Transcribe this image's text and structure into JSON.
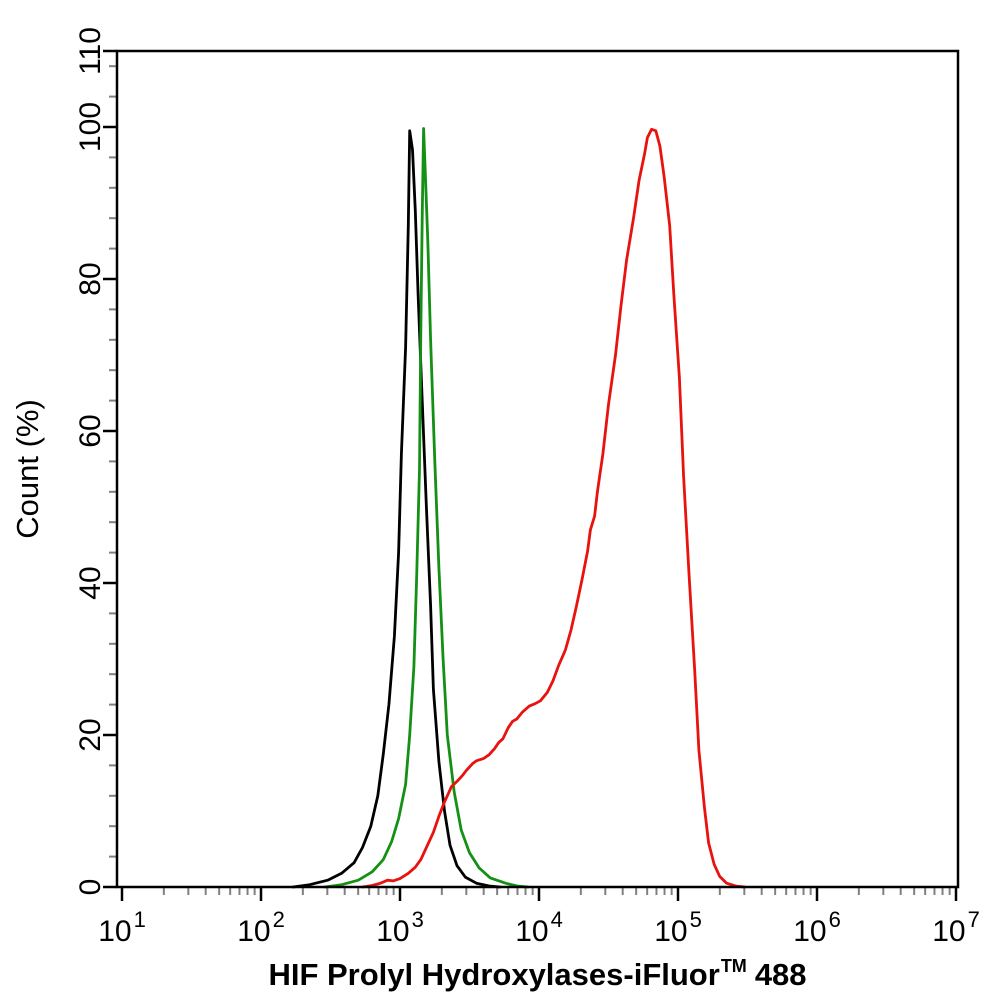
{
  "figure": {
    "background": "#ffffff",
    "x_axis": {
      "scale": "log10",
      "tick_base": "10",
      "major_tick_exponents": [
        1,
        2,
        3,
        4,
        5,
        6,
        7
      ],
      "minor_tick_multiples": [
        2,
        3,
        4,
        5,
        6,
        7,
        8,
        9
      ],
      "label_parts": {
        "main": "HIF Prolyl Hydroxylases-iFluor",
        "superscript": "TM",
        "suffix": "488"
      }
    },
    "y_axis": {
      "label": "Count  (%)",
      "min": 0,
      "max": 110,
      "major_ticks": [
        0,
        20,
        40,
        60,
        80,
        100,
        110
      ],
      "minor_tick_step": 4
    },
    "colors": {
      "axis": "#000000",
      "minor_tick": "#808080",
      "series_black": "#000000",
      "series_green": "#149114",
      "series_red": "#e8120f"
    }
  },
  "chart_data": {
    "type": "line",
    "title": "",
    "xlabel": "HIF Prolyl Hydroxylases-iFluor™ 488",
    "ylabel": "Count (%)",
    "x_scale": "log",
    "xlim": [
      10,
      10000000
    ],
    "ylim": [
      0,
      110
    ],
    "grid": false,
    "legend": "none",
    "point_format": "[log10(x), count_percent]",
    "series": [
      {
        "name": "black",
        "color": "#000000",
        "peak_x": 1200,
        "peak_y": 100,
        "points": [
          [
            2.23,
            0
          ],
          [
            2.35,
            0.3
          ],
          [
            2.48,
            0.9
          ],
          [
            2.58,
            1.8
          ],
          [
            2.67,
            3.2
          ],
          [
            2.73,
            5.2
          ],
          [
            2.79,
            8
          ],
          [
            2.84,
            12
          ],
          [
            2.88,
            17.5
          ],
          [
            2.92,
            24
          ],
          [
            2.96,
            33
          ],
          [
            2.99,
            44
          ],
          [
            3.01,
            57
          ],
          [
            3.04,
            71
          ],
          [
            3.06,
            87
          ],
          [
            3.07,
            99.5
          ],
          [
            3.09,
            97
          ],
          [
            3.11,
            89
          ],
          [
            3.13,
            78
          ],
          [
            3.16,
            64
          ],
          [
            3.19,
            50
          ],
          [
            3.22,
            37
          ],
          [
            3.24,
            26
          ],
          [
            3.28,
            16.5
          ],
          [
            3.32,
            10
          ],
          [
            3.36,
            5.5
          ],
          [
            3.41,
            2.8
          ],
          [
            3.47,
            1.3
          ],
          [
            3.55,
            0.5
          ],
          [
            3.65,
            0.1
          ],
          [
            3.72,
            0
          ]
        ]
      },
      {
        "name": "green",
        "color": "#149114",
        "peak_x": 1450,
        "peak_y": 100,
        "points": [
          [
            2.46,
            0
          ],
          [
            2.58,
            0.3
          ],
          [
            2.7,
            0.9
          ],
          [
            2.8,
            2
          ],
          [
            2.88,
            3.6
          ],
          [
            2.94,
            6
          ],
          [
            2.99,
            9
          ],
          [
            3.04,
            13.5
          ],
          [
            3.07,
            20
          ],
          [
            3.1,
            29
          ],
          [
            3.12,
            41
          ],
          [
            3.14,
            55
          ],
          [
            3.15,
            73
          ],
          [
            3.16,
            88
          ],
          [
            3.17,
            99.8
          ],
          [
            3.18,
            95
          ],
          [
            3.2,
            85
          ],
          [
            3.22,
            72
          ],
          [
            3.25,
            56
          ],
          [
            3.28,
            42
          ],
          [
            3.31,
            30
          ],
          [
            3.34,
            20
          ],
          [
            3.39,
            12.5
          ],
          [
            3.44,
            7.5
          ],
          [
            3.5,
            4.5
          ],
          [
            3.57,
            2.5
          ],
          [
            3.65,
            1.2
          ],
          [
            3.76,
            0.5
          ],
          [
            3.85,
            0.1
          ],
          [
            3.92,
            0
          ]
        ]
      },
      {
        "name": "red",
        "color": "#e8120f",
        "peak_x": 65000,
        "peak_y": 100,
        "points": [
          [
            2.73,
            0
          ],
          [
            2.8,
            0.2
          ],
          [
            2.86,
            0.5
          ],
          [
            2.91,
            0.9
          ],
          [
            2.95,
            0.8
          ],
          [
            3.0,
            1.1
          ],
          [
            3.06,
            1.8
          ],
          [
            3.11,
            2.6
          ],
          [
            3.15,
            3.6
          ],
          [
            3.19,
            5.2
          ],
          [
            3.24,
            7.2
          ],
          [
            3.28,
            9.3
          ],
          [
            3.32,
            11.2
          ],
          [
            3.35,
            12.4
          ],
          [
            3.37,
            13.2
          ],
          [
            3.41,
            13.9
          ],
          [
            3.45,
            14.7
          ],
          [
            3.48,
            15.4
          ],
          [
            3.52,
            16.2
          ],
          [
            3.55,
            16.6
          ],
          [
            3.6,
            16.9
          ],
          [
            3.64,
            17.4
          ],
          [
            3.68,
            18.2
          ],
          [
            3.71,
            19.0
          ],
          [
            3.74,
            19.5
          ],
          [
            3.78,
            21.0
          ],
          [
            3.81,
            21.8
          ],
          [
            3.84,
            22.1
          ],
          [
            3.88,
            23.0
          ],
          [
            3.93,
            23.8
          ],
          [
            3.97,
            24.1
          ],
          [
            4.01,
            24.5
          ],
          [
            4.06,
            25.6
          ],
          [
            4.1,
            27.1
          ],
          [
            4.14,
            29.1
          ],
          [
            4.19,
            31.2
          ],
          [
            4.23,
            33.8
          ],
          [
            4.27,
            37.0
          ],
          [
            4.31,
            40.5
          ],
          [
            4.35,
            44.2
          ],
          [
            4.37,
            47.0
          ],
          [
            4.4,
            48.8
          ],
          [
            4.42,
            52
          ],
          [
            4.46,
            57
          ],
          [
            4.5,
            63.5
          ],
          [
            4.55,
            70
          ],
          [
            4.59,
            76.5
          ],
          [
            4.63,
            82.5
          ],
          [
            4.68,
            88
          ],
          [
            4.72,
            93
          ],
          [
            4.76,
            96.5
          ],
          [
            4.78,
            98.6
          ],
          [
            4.81,
            99.7
          ],
          [
            4.84,
            99.5
          ],
          [
            4.87,
            97.5
          ],
          [
            4.9,
            93.5
          ],
          [
            4.94,
            87
          ],
          [
            4.97,
            78
          ],
          [
            5.01,
            67
          ],
          [
            5.04,
            54
          ],
          [
            5.08,
            41
          ],
          [
            5.12,
            28.5
          ],
          [
            5.15,
            18
          ],
          [
            5.19,
            10.5
          ],
          [
            5.22,
            5.8
          ],
          [
            5.26,
            3
          ],
          [
            5.3,
            1.4
          ],
          [
            5.35,
            0.5
          ],
          [
            5.42,
            0.1
          ],
          [
            5.48,
            0
          ]
        ]
      }
    ]
  }
}
